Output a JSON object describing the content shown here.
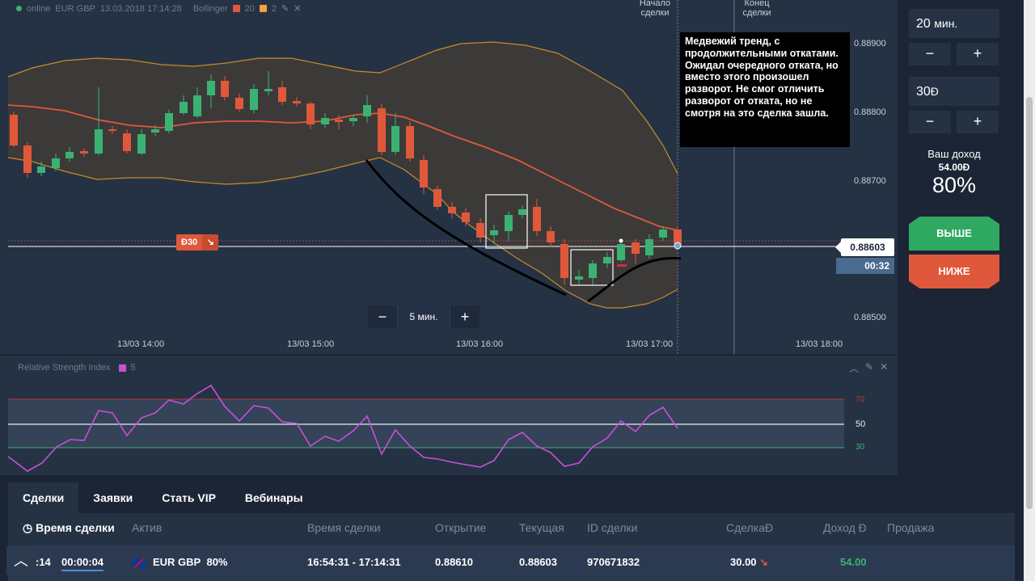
{
  "header": {
    "status": "online",
    "asset": "EUR GBP",
    "datetime": "13.03.2018 17:14:28",
    "indicator": "Bollinger",
    "param1": "20",
    "param2": "2",
    "color1": "#e0583c",
    "color2": "#f2a33a"
  },
  "chart": {
    "deal_start_label": "Начало сделки",
    "deal_end_label": "Конец сделки",
    "annotation": "Медвежий тренд, с продолжительными откатами. Ожидал очередного отката, но вместо этого произошел разворот. Не смог отличить разворот от отката, но не смотря на это сделка зашла.",
    "y_ticks": [
      "0.88900",
      "0.88800",
      "0.88700",
      "0.88500"
    ],
    "x_ticks": [
      "13/03 14:00",
      "13/03 15:00",
      "13/03 16:00",
      "13/03 17:00",
      "13/03 18:00"
    ],
    "current_price": "0.88603",
    "timer": "00:32",
    "trade_amount": "Đ30",
    "timeframe": "5 мин.",
    "minus": "−",
    "plus": "+"
  },
  "rsi": {
    "title": "Relative Strength Index",
    "period": "5",
    "color": "#c94fd8",
    "levels": [
      "70",
      "50",
      "30"
    ]
  },
  "sidebar": {
    "time_value": "20",
    "time_unit": "мин.",
    "amount_value": "30",
    "currency": "Đ",
    "minus": "−",
    "plus": "+",
    "income_label": "Ваш доход",
    "income_value": "54.00Đ",
    "income_pct": "80%",
    "up_label": "ВЫШЕ",
    "down_label": "НИЖЕ"
  },
  "bottom": {
    "tabs": [
      "Сделки",
      "Заявки",
      "Стать VIP",
      "Вебинары"
    ],
    "columns": [
      "Время сделки",
      "Актив",
      "Время сделки",
      "Открытие",
      "Текущая",
      "ID сделки",
      "СделкаĐ",
      "Доход Đ",
      "Продажа"
    ],
    "row": {
      "time_left": ":14",
      "timer": "00:00:04",
      "asset": "EUR GBP",
      "payout": "80%",
      "period": "16:54:31 - 17:14:31",
      "open": "0.88610",
      "current": "0.88603",
      "id": "970671832",
      "amount": "30.00",
      "income": "54.00"
    }
  }
}
